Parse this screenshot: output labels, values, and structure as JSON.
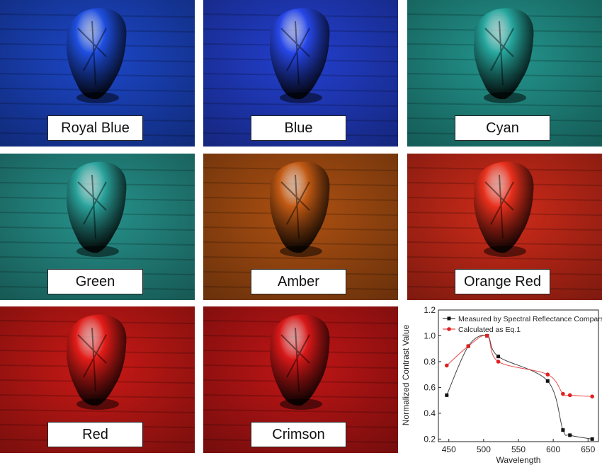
{
  "panels": [
    {
      "label": "Royal Blue",
      "color": "#1f4fe0"
    },
    {
      "label": "Blue",
      "color": "#2747e8"
    },
    {
      "label": "Cyan",
      "color": "#27a79e"
    },
    {
      "label": "Green",
      "color": "#2ba39c"
    },
    {
      "label": "Amber",
      "color": "#c25a14"
    },
    {
      "label": "Orange Red",
      "color": "#e8301c"
    },
    {
      "label": "Red",
      "color": "#e21c18"
    },
    {
      "label": "Crimson",
      "color": "#d81818"
    }
  ],
  "chart_data": {
    "type": "line",
    "xlabel": "Wavelength",
    "ylabel": "Normalized Contrast Value",
    "xlim": [
      435,
      665
    ],
    "ylim": [
      0.18,
      1.2
    ],
    "xticks": [
      450,
      500,
      550,
      600,
      650
    ],
    "yticks": [
      0.2,
      0.4,
      0.6,
      0.8,
      1.0,
      1.2
    ],
    "legend_position": "top-right",
    "series": [
      {
        "name": "Measured by Spectral Reflectance Comparsion",
        "color": "#111111",
        "marker": "square",
        "x": [
          447,
          478,
          505,
          521,
          592,
          614,
          624,
          656
        ],
        "y": [
          0.54,
          0.92,
          1.0,
          0.84,
          0.65,
          0.27,
          0.23,
          0.2
        ]
      },
      {
        "name": "Calculated as Eq.1",
        "color": "#e02020",
        "marker": "circle",
        "x": [
          447,
          478,
          505,
          521,
          592,
          614,
          624,
          656
        ],
        "y": [
          0.77,
          0.92,
          1.0,
          0.8,
          0.7,
          0.55,
          0.54,
          0.53
        ]
      }
    ]
  }
}
